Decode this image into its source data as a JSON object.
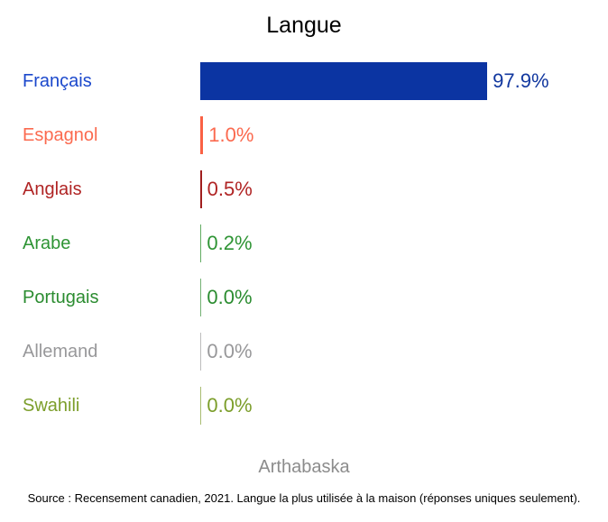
{
  "title": "Langue",
  "footer": {
    "region": "Arthabaska",
    "source": "Source : Recensement canadien, 2021. Langue la plus utilisée à la maison (réponses uniques seulement)."
  },
  "chart_data": {
    "type": "bar",
    "orientation": "horizontal",
    "title": "Langue",
    "subtitle": "Arthabaska",
    "unit": "%",
    "xlim": [
      0,
      100
    ],
    "grid": false,
    "legend": "none",
    "categories": [
      "Français",
      "Espagnol",
      "Anglais",
      "Arabe",
      "Portugais",
      "Allemand",
      "Swahili"
    ],
    "values": [
      97.9,
      1.0,
      0.5,
      0.2,
      0.0,
      0.0,
      0.0
    ],
    "rows": [
      {
        "label": "Français",
        "value": 97.9,
        "display": "97.9%",
        "label_color": "#1b48cc",
        "value_color": "#11379f",
        "bar_color": "#0b34a2"
      },
      {
        "label": "Espagnol",
        "value": 1.0,
        "display": "1.0%",
        "label_color": "#fb6a4f",
        "value_color": "#fb6a4f",
        "bar_color": "#fa6144"
      },
      {
        "label": "Anglais",
        "value": 0.5,
        "display": "0.5%",
        "label_color": "#b02424",
        "value_color": "#b02424",
        "bar_color": "#a01e1e"
      },
      {
        "label": "Arabe",
        "value": 0.2,
        "display": "0.2%",
        "label_color": "#2e9434",
        "value_color": "#2e9434",
        "bar_color": "#63ac63"
      },
      {
        "label": "Portugais",
        "value": 0.0,
        "display": "0.0%",
        "label_color": "#2b8c30",
        "value_color": "#2b8c30",
        "bar_color": "#74b274"
      },
      {
        "label": "Allemand",
        "value": 0.0,
        "display": "0.0%",
        "label_color": "#98989a",
        "value_color": "#98989a",
        "bar_color": "#bdbdbd"
      },
      {
        "label": "Swahili",
        "value": 0.0,
        "display": "0.0%",
        "label_color": "#7c9e2b",
        "value_color": "#7c9e2b",
        "bar_color": "#a9bc72"
      }
    ]
  }
}
